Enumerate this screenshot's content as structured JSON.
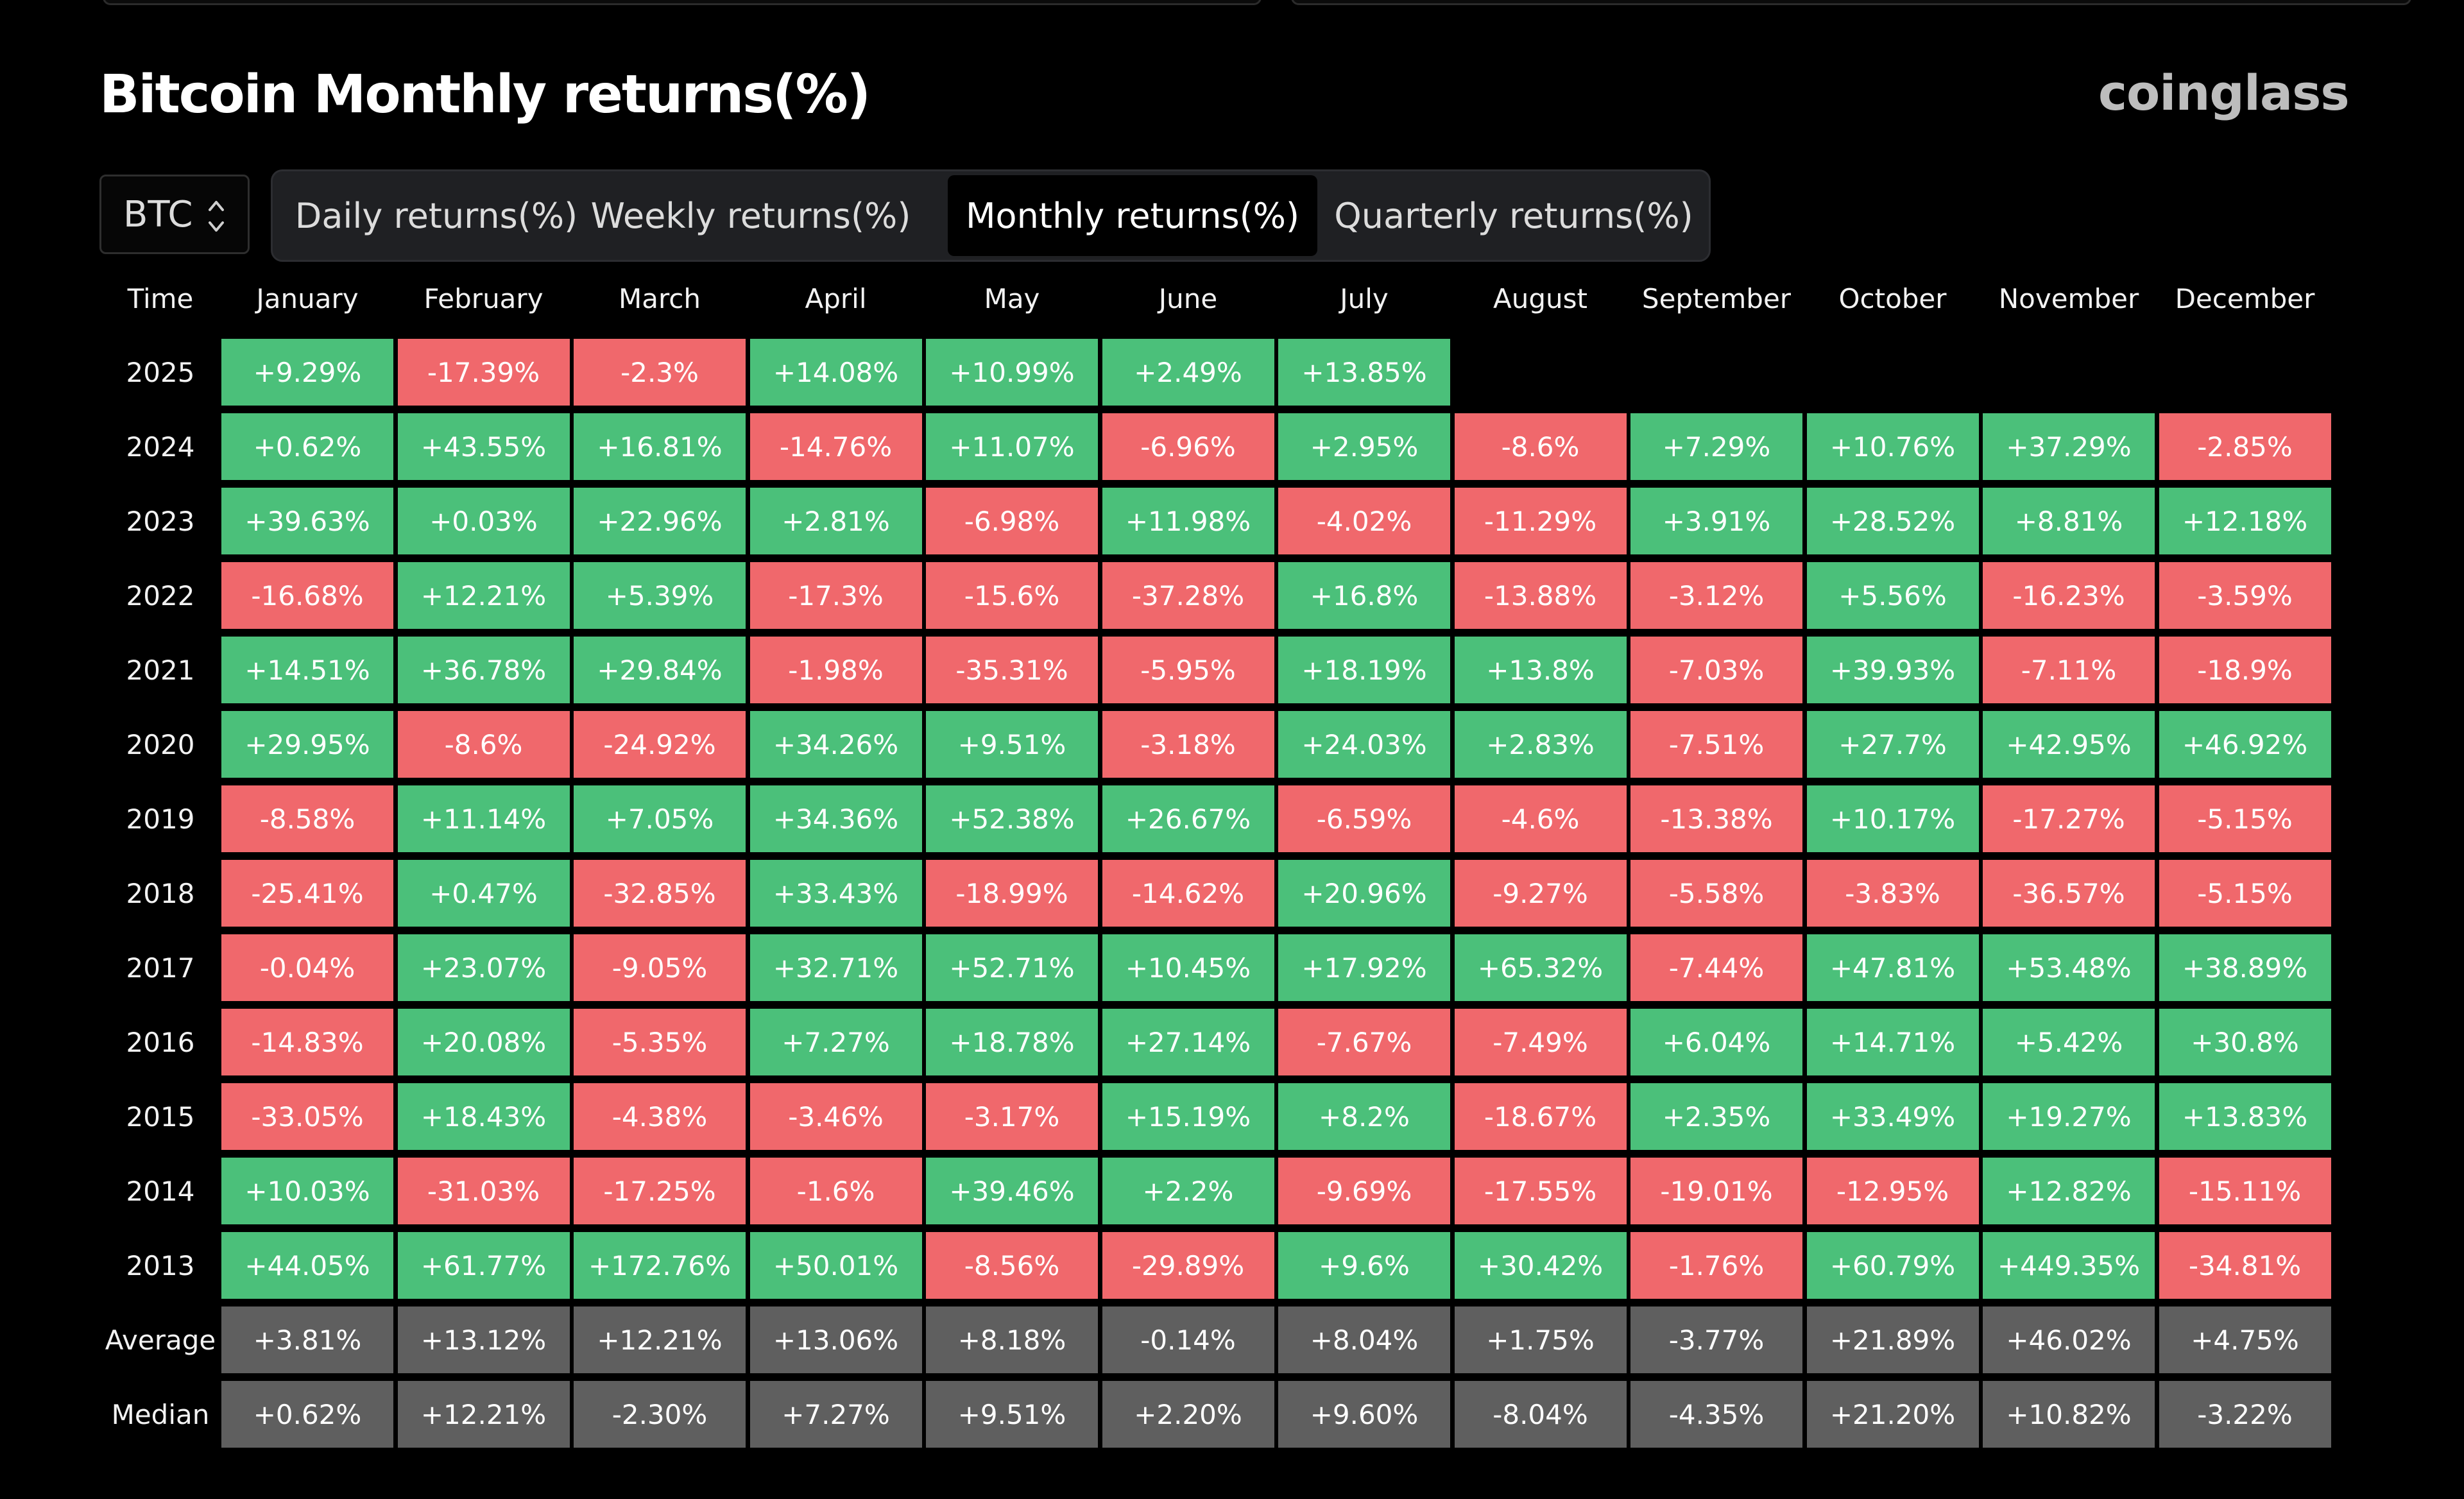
{
  "page": {
    "title": "Bitcoin Monthly returns(%)",
    "brand": "coinglass"
  },
  "controls": {
    "coin_selected": "BTC",
    "tabs": [
      {
        "label": "Daily returns(%)",
        "active": false
      },
      {
        "label": "Weekly returns(%)",
        "active": false
      },
      {
        "label": "Monthly returns(%)",
        "active": true
      },
      {
        "label": "Quarterly returns(%)",
        "active": false
      }
    ]
  },
  "colors": {
    "positive": "#4bc07a",
    "negative": "#f0686c",
    "summary": "#5f5f5f",
    "background": "#000000"
  },
  "chart_data": {
    "type": "heatmap",
    "title": "Bitcoin Monthly returns(%)",
    "corner_label": "Time",
    "columns": [
      "January",
      "February",
      "March",
      "April",
      "May",
      "June",
      "July",
      "August",
      "September",
      "October",
      "November",
      "December"
    ],
    "rows": [
      {
        "label": "2025",
        "values": [
          "+9.29%",
          "-17.39%",
          "-2.3%",
          "+14.08%",
          "+10.99%",
          "+2.49%",
          "+13.85%",
          null,
          null,
          null,
          null,
          null
        ]
      },
      {
        "label": "2024",
        "values": [
          "+0.62%",
          "+43.55%",
          "+16.81%",
          "-14.76%",
          "+11.07%",
          "-6.96%",
          "+2.95%",
          "-8.6%",
          "+7.29%",
          "+10.76%",
          "+37.29%",
          "-2.85%"
        ]
      },
      {
        "label": "2023",
        "values": [
          "+39.63%",
          "+0.03%",
          "+22.96%",
          "+2.81%",
          "-6.98%",
          "+11.98%",
          "-4.02%",
          "-11.29%",
          "+3.91%",
          "+28.52%",
          "+8.81%",
          "+12.18%"
        ]
      },
      {
        "label": "2022",
        "values": [
          "-16.68%",
          "+12.21%",
          "+5.39%",
          "-17.3%",
          "-15.6%",
          "-37.28%",
          "+16.8%",
          "-13.88%",
          "-3.12%",
          "+5.56%",
          "-16.23%",
          "-3.59%"
        ]
      },
      {
        "label": "2021",
        "values": [
          "+14.51%",
          "+36.78%",
          "+29.84%",
          "-1.98%",
          "-35.31%",
          "-5.95%",
          "+18.19%",
          "+13.8%",
          "-7.03%",
          "+39.93%",
          "-7.11%",
          "-18.9%"
        ]
      },
      {
        "label": "2020",
        "values": [
          "+29.95%",
          "-8.6%",
          "-24.92%",
          "+34.26%",
          "+9.51%",
          "-3.18%",
          "+24.03%",
          "+2.83%",
          "-7.51%",
          "+27.7%",
          "+42.95%",
          "+46.92%"
        ]
      },
      {
        "label": "2019",
        "values": [
          "-8.58%",
          "+11.14%",
          "+7.05%",
          "+34.36%",
          "+52.38%",
          "+26.67%",
          "-6.59%",
          "-4.6%",
          "-13.38%",
          "+10.17%",
          "-17.27%",
          "-5.15%"
        ]
      },
      {
        "label": "2018",
        "values": [
          "-25.41%",
          "+0.47%",
          "-32.85%",
          "+33.43%",
          "-18.99%",
          "-14.62%",
          "+20.96%",
          "-9.27%",
          "-5.58%",
          "-3.83%",
          "-36.57%",
          "-5.15%"
        ]
      },
      {
        "label": "2017",
        "values": [
          "-0.04%",
          "+23.07%",
          "-9.05%",
          "+32.71%",
          "+52.71%",
          "+10.45%",
          "+17.92%",
          "+65.32%",
          "-7.44%",
          "+47.81%",
          "+53.48%",
          "+38.89%"
        ]
      },
      {
        "label": "2016",
        "values": [
          "-14.83%",
          "+20.08%",
          "-5.35%",
          "+7.27%",
          "+18.78%",
          "+27.14%",
          "-7.67%",
          "-7.49%",
          "+6.04%",
          "+14.71%",
          "+5.42%",
          "+30.8%"
        ]
      },
      {
        "label": "2015",
        "values": [
          "-33.05%",
          "+18.43%",
          "-4.38%",
          "-3.46%",
          "-3.17%",
          "+15.19%",
          "+8.2%",
          "-18.67%",
          "+2.35%",
          "+33.49%",
          "+19.27%",
          "+13.83%"
        ]
      },
      {
        "label": "2014",
        "values": [
          "+10.03%",
          "-31.03%",
          "-17.25%",
          "-1.6%",
          "+39.46%",
          "+2.2%",
          "-9.69%",
          "-17.55%",
          "-19.01%",
          "-12.95%",
          "+12.82%",
          "-15.11%"
        ]
      },
      {
        "label": "2013",
        "values": [
          "+44.05%",
          "+61.77%",
          "+172.76%",
          "+50.01%",
          "-8.56%",
          "-29.89%",
          "+9.6%",
          "+30.42%",
          "-1.76%",
          "+60.79%",
          "+449.35%",
          "-34.81%"
        ]
      }
    ],
    "summary_rows": [
      {
        "label": "Average",
        "values": [
          "+3.81%",
          "+13.12%",
          "+12.21%",
          "+13.06%",
          "+8.18%",
          "-0.14%",
          "+8.04%",
          "+1.75%",
          "-3.77%",
          "+21.89%",
          "+46.02%",
          "+4.75%"
        ]
      },
      {
        "label": "Median",
        "values": [
          "+0.62%",
          "+12.21%",
          "-2.30%",
          "+7.27%",
          "+9.51%",
          "+2.20%",
          "+9.60%",
          "-8.04%",
          "-4.35%",
          "+21.20%",
          "+10.82%",
          "-3.22%"
        ]
      }
    ]
  }
}
